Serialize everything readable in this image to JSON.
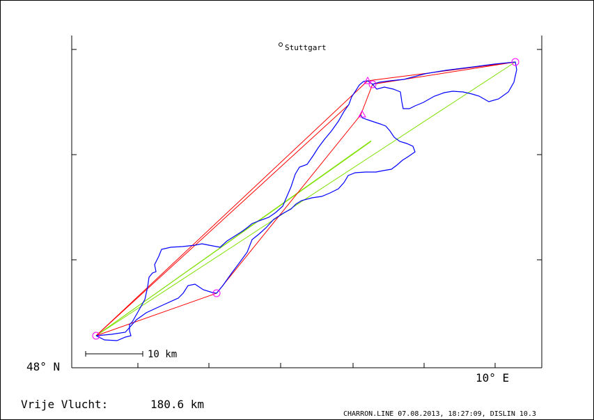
{
  "map": {
    "place_label": "Stuttgart",
    "lat_label": "48° N",
    "lon_label": "10° E",
    "scale_label": "10 km"
  },
  "footer": {
    "distance_label": "Vrije Vlucht:",
    "distance_value": "180.6 km",
    "credit": "CHARRON.LINE 07.08.2013, 18:27:09, DISLIN 10.3"
  },
  "colors": {
    "track": "#0000ff",
    "task": "#ff0000",
    "optimized": "#80e000",
    "turnpoint": "#ff00ff",
    "axes": "#000000"
  },
  "legend_icons": [
    "turnpoint-circle-icon",
    "turnpoint-triangle-icon",
    "town-marker-icon"
  ]
}
